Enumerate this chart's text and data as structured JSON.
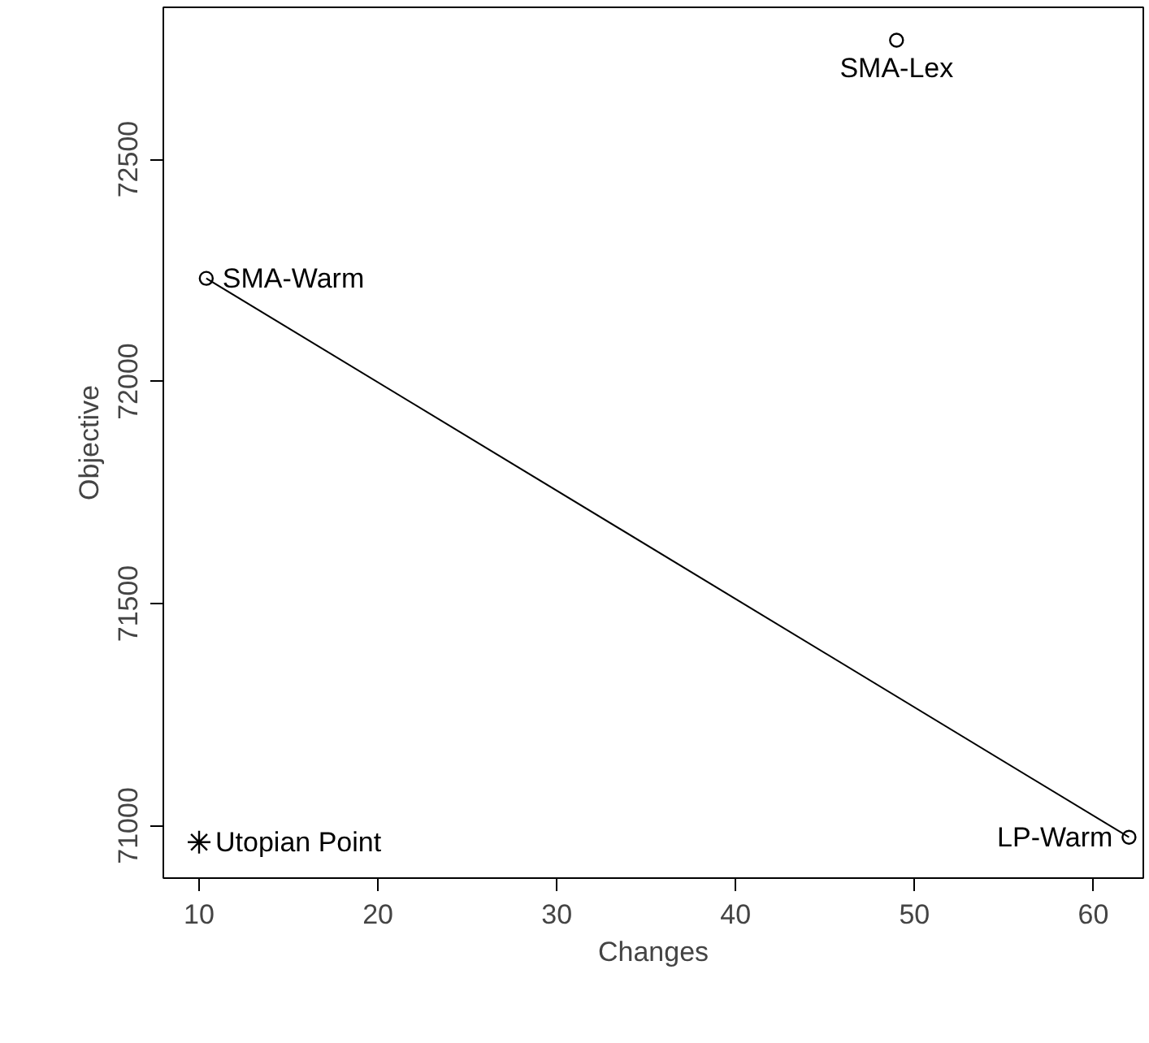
{
  "chart_data": {
    "type": "scatter",
    "xlabel": "Changes",
    "ylabel": "Objective",
    "xlim": [
      8,
      62.8
    ],
    "ylim": [
      70882,
      72842
    ],
    "xticks": [
      10,
      20,
      30,
      40,
      50,
      60
    ],
    "yticks": [
      71000,
      71500,
      72000,
      72500
    ],
    "grid": false,
    "series": [
      {
        "x": [
          49,
          10.4,
          62
        ],
        "values": [
          72768,
          72232,
          70974
        ],
        "color": "#000000",
        "marker": "circle"
      },
      {
        "type": "line",
        "x": [
          10.4,
          62
        ],
        "values": [
          72232,
          70974
        ],
        "color": "#000000",
        "marker": "none",
        "line_style": "solid"
      },
      {
        "x": [
          10
        ],
        "values": [
          70963
        ],
        "color": "#000000",
        "marker": "cross"
      }
    ],
    "annotations": [
      {
        "text": "SMA-Lex",
        "x": 49,
        "y": 72768
      },
      {
        "text": "SMA-Warm",
        "x": 10.4,
        "y": 72232
      },
      {
        "text": "LP-Warm",
        "x": 62,
        "y": 70974
      },
      {
        "text": "Utopian Point",
        "x": 10,
        "y": 70963
      }
    ]
  }
}
